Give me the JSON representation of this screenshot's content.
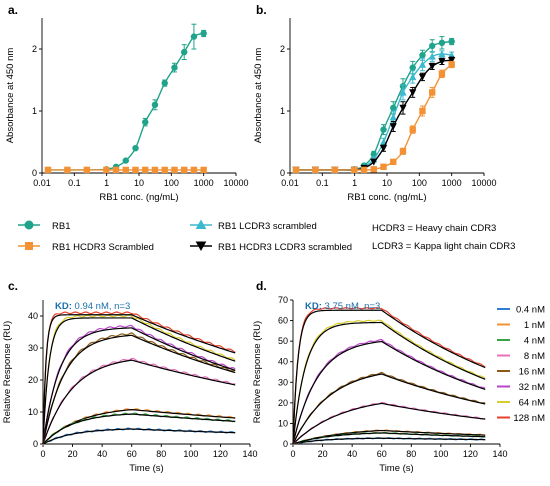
{
  "colors": {
    "rb1": "#1fa38a",
    "hcdr3": "#f39234",
    "lcdr3": "#3cb9cf",
    "both": "#000000",
    "fit": "#000000",
    "kd_label": "#1b6ea8"
  },
  "chart_data": [
    {
      "panel": "a.",
      "type": "line",
      "xscale": "log",
      "xlabel": "RB1 conc. (ng/mL)",
      "ylabel": "Absorbance at 450 nm",
      "xlim": [
        0.01,
        10000
      ],
      "ylim": [
        0,
        2.5
      ],
      "xticks": [
        "0.01",
        "0.1",
        "1",
        "10",
        "100",
        "1000",
        "10000"
      ],
      "yticks": [
        "0",
        "1",
        "2"
      ],
      "series": [
        {
          "key": "rb1",
          "marker": "circle",
          "x": [
            0.0153,
            0.061,
            0.244,
            0.98,
            1.95,
            3.9,
            7.8,
            15.6,
            31.2,
            62.5,
            125,
            250,
            500,
            1000
          ],
          "y": [
            0.05,
            0.05,
            0.05,
            0.06,
            0.1,
            0.2,
            0.4,
            0.82,
            1.1,
            1.45,
            1.7,
            1.95,
            2.2,
            2.25
          ],
          "err": [
            0,
            0,
            0,
            0,
            0,
            0,
            0,
            0.06,
            0.08,
            0.05,
            0.07,
            0.12,
            0.2,
            0.05
          ]
        },
        {
          "key": "hcdr3",
          "marker": "square",
          "x": [
            0.0153,
            0.061,
            0.244,
            0.98,
            1.95,
            3.9,
            7.8,
            15.6,
            31.2,
            62.5,
            125,
            250,
            500,
            1000
          ],
          "y": [
            0.05,
            0.05,
            0.05,
            0.05,
            0.05,
            0.05,
            0.05,
            0.05,
            0.05,
            0.05,
            0.05,
            0.05,
            0.05,
            0.05
          ],
          "err": [
            0,
            0,
            0,
            0,
            0,
            0,
            0,
            0,
            0,
            0,
            0,
            0,
            0,
            0
          ]
        }
      ]
    },
    {
      "panel": "b.",
      "type": "line",
      "xscale": "log",
      "xlabel": "RB1 conc. (ng/mL)",
      "ylabel": "Absorbance at 450 nm",
      "xlim": [
        0.01,
        10000
      ],
      "ylim": [
        0,
        2.5
      ],
      "xticks": [
        "0.01",
        "0.1",
        "1",
        "10",
        "100",
        "1000",
        "10000"
      ],
      "yticks": [
        "0",
        "1",
        "2"
      ],
      "series": [
        {
          "key": "rb1",
          "marker": "circle",
          "x": [
            0.0153,
            0.061,
            0.244,
            0.98,
            1.95,
            3.9,
            7.8,
            15.6,
            31.2,
            62.5,
            125,
            250,
            500,
            1000
          ],
          "y": [
            0.05,
            0.05,
            0.05,
            0.06,
            0.12,
            0.3,
            0.7,
            1.05,
            1.4,
            1.7,
            1.9,
            2.05,
            2.1,
            2.12
          ],
          "err": [
            0,
            0,
            0,
            0,
            0,
            0.05,
            0.08,
            0.1,
            0.12,
            0.1,
            0.08,
            0.1,
            0.1,
            0.05
          ]
        },
        {
          "key": "lcdr3",
          "marker": "triangle-up",
          "x": [
            0.0153,
            0.061,
            0.244,
            0.98,
            1.95,
            3.9,
            7.8,
            15.6,
            31.2,
            62.5,
            125,
            250,
            500,
            1000
          ],
          "y": [
            0.05,
            0.05,
            0.05,
            0.05,
            0.1,
            0.22,
            0.5,
            0.9,
            1.3,
            1.55,
            1.75,
            1.88,
            1.92,
            1.9
          ],
          "err": [
            0,
            0,
            0,
            0,
            0,
            0.04,
            0.06,
            0.1,
            0.12,
            0.1,
            0.1,
            0.08,
            0.05,
            0.05
          ]
        },
        {
          "key": "both",
          "marker": "triangle-down",
          "x": [
            0.0153,
            0.061,
            0.244,
            0.98,
            1.95,
            3.9,
            7.8,
            15.6,
            31.2,
            62.5,
            125,
            250,
            500,
            1000
          ],
          "y": [
            0.05,
            0.05,
            0.05,
            0.05,
            0.08,
            0.18,
            0.4,
            0.75,
            1.05,
            1.3,
            1.55,
            1.72,
            1.8,
            1.82
          ],
          "err": [
            0,
            0,
            0,
            0,
            0,
            0,
            0.05,
            0.08,
            0.1,
            0.08,
            0.06,
            0.05,
            0.05,
            0.05
          ]
        },
        {
          "key": "hcdr3",
          "marker": "square",
          "x": [
            0.0153,
            0.061,
            0.244,
            0.98,
            1.95,
            3.9,
            7.8,
            15.6,
            31.2,
            62.5,
            125,
            250,
            500,
            1000
          ],
          "y": [
            0.05,
            0.05,
            0.05,
            0.05,
            0.05,
            0.06,
            0.1,
            0.18,
            0.35,
            0.7,
            1.0,
            1.3,
            1.6,
            1.75
          ],
          "err": [
            0,
            0,
            0,
            0,
            0,
            0,
            0,
            0,
            0.05,
            0.06,
            0.08,
            0.08,
            0.06,
            0.05
          ]
        }
      ]
    },
    {
      "panel": "c.",
      "type": "line",
      "xlabel": "Time (s)",
      "ylabel": "Relative Response (RU)",
      "annotation_key": "KD:",
      "annotation_value": " 0.94 nM, n=3",
      "xlim": [
        0,
        140
      ],
      "ylim": [
        0,
        45
      ],
      "xticks": [
        "0",
        "20",
        "40",
        "60",
        "80",
        "100",
        "120",
        "140"
      ],
      "yticks": [
        "0",
        "10",
        "20",
        "30",
        "40"
      ],
      "association_end": 60,
      "t_end": 130,
      "curves": [
        {
          "conc": "0.4 nM",
          "rmax": 5,
          "kobs": 0.05,
          "kd": 0.004
        },
        {
          "conc": "1 nM",
          "rmax": 12,
          "kobs": 0.04,
          "kd": 0.004
        },
        {
          "conc": "4 nM",
          "rmax": 10,
          "kobs": 0.05,
          "kd": 0.004
        },
        {
          "conc": "8 nM",
          "rmax": 28,
          "kobs": 0.05,
          "kd": 0.005
        },
        {
          "conc": "16 nM",
          "rmax": 35,
          "kobs": 0.07,
          "kd": 0.006
        },
        {
          "conc": "32 nM",
          "rmax": 37,
          "kobs": 0.09,
          "kd": 0.0065
        },
        {
          "conc": "64 nM",
          "rmax": 40,
          "kobs": 0.25,
          "kd": 0.006
        },
        {
          "conc": "128 nM",
          "rmax": 41,
          "kobs": 0.5,
          "kd": 0.005
        }
      ]
    },
    {
      "panel": "d.",
      "type": "line",
      "xlabel": "Time (s)",
      "ylabel": "Relative Response (RU)",
      "annotation_key": "KD:",
      "annotation_value": " 3.75 nM, n=3",
      "xlim": [
        0,
        140
      ],
      "ylim": [
        0,
        70
      ],
      "xticks": [
        "0",
        "20",
        "40",
        "60",
        "80",
        "100",
        "120",
        "140"
      ],
      "yticks": [
        "0",
        "10",
        "20",
        "30",
        "40",
        "50",
        "60",
        "70"
      ],
      "association_end": 60,
      "t_end": 130,
      "curves": [
        {
          "conc": "0.4 nM",
          "rmax": 3,
          "kobs": 0.05,
          "kd": 0.004
        },
        {
          "conc": "1 nM",
          "rmax": 8,
          "kobs": 0.03,
          "kd": 0.006
        },
        {
          "conc": "4 nM",
          "rmax": 6,
          "kobs": 0.04,
          "kd": 0.006
        },
        {
          "conc": "8 nM",
          "rmax": 24,
          "kobs": 0.03,
          "kd": 0.007
        },
        {
          "conc": "16 nM",
          "rmax": 38,
          "kobs": 0.04,
          "kd": 0.008
        },
        {
          "conc": "32 nM",
          "rmax": 52,
          "kobs": 0.06,
          "kd": 0.009
        },
        {
          "conc": "64 nM",
          "rmax": 60,
          "kobs": 0.12,
          "kd": 0.009
        },
        {
          "conc": "128 nM",
          "rmax": 66,
          "kobs": 0.3,
          "kd": 0.008
        }
      ]
    }
  ],
  "elisa_legend": [
    {
      "key": "rb1",
      "label": "RB1"
    },
    {
      "key": "lcdr3",
      "label": "RB1 LCDR3 scrambled"
    },
    {
      "key": "hcdr3",
      "label": "RB1 HCDR3 Scrambled"
    },
    {
      "key": "both",
      "label": "RB1 HCDR3 LCDR3 scrambled"
    }
  ],
  "definitions": [
    "HCDR3 = Heavy chain CDR3",
    "LCDR3 = Kappa light chain CDR3"
  ],
  "spr_legend": [
    {
      "label": "0.4 nM",
      "color": "#2e7fd0"
    },
    {
      "label": "1 nM",
      "color": "#f39234"
    },
    {
      "label": "4 nM",
      "color": "#37a443"
    },
    {
      "label": "8 nM",
      "color": "#e86fbd"
    },
    {
      "label": "16 nM",
      "color": "#8a5a16"
    },
    {
      "label": "32 nM",
      "color": "#b946c9"
    },
    {
      "label": "64 nM",
      "color": "#d8cd2b"
    },
    {
      "label": "128 nM",
      "color": "#e6412b"
    }
  ]
}
